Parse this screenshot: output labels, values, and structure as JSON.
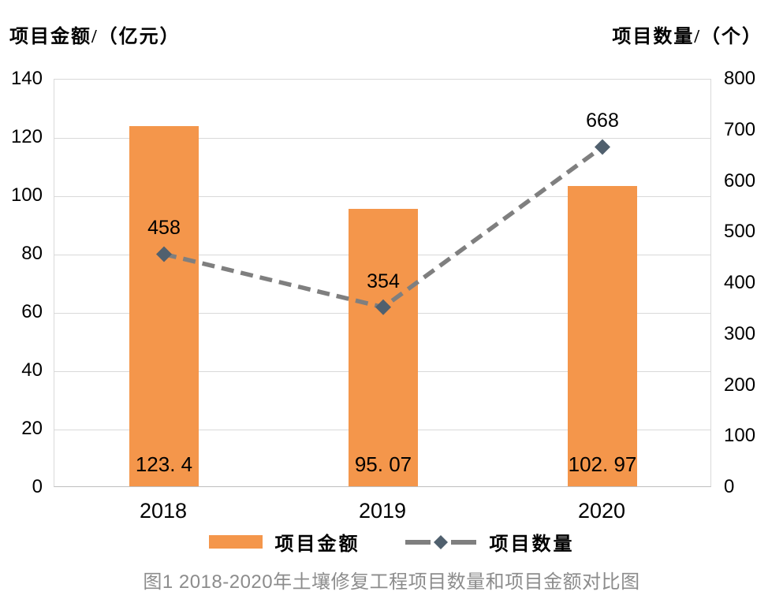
{
  "axes_titles": {
    "left": "项目金额/（亿元）",
    "right": "项目数量/（个）"
  },
  "legend": {
    "bar_label": "项目金额",
    "line_label": "项目数量"
  },
  "caption": "图1 2018-2020年土壤修复工程项目数量和项目金额对比图",
  "colors": {
    "bar": "#F4964B",
    "line_dash": "#7F7F7F",
    "marker": "#50606E",
    "gridline": "#D9D9D9",
    "axis_line": "#BFBFBF",
    "caption_text": "#8C8C8C",
    "label_text": "#000000"
  },
  "chart_data": {
    "type": "bar+line",
    "title": "图1 2018-2020年土壤修复工程项目数量和项目金额对比图",
    "categories": [
      "2018",
      "2019",
      "2020"
    ],
    "series": [
      {
        "name": "项目金额",
        "chart": "bar",
        "axis": "left",
        "values": [
          123.4,
          95.07,
          102.97
        ],
        "value_labels": [
          "123. 4",
          "95. 07",
          "102. 97"
        ],
        "color": "#F4964B"
      },
      {
        "name": "项目数量",
        "chart": "line",
        "axis": "right",
        "values": [
          458,
          354,
          668
        ],
        "value_labels": [
          "458",
          "354",
          "668"
        ],
        "line_style": "dashed",
        "marker": "diamond",
        "line_color": "#7F7F7F",
        "marker_color": "#50606E"
      }
    ],
    "left_axis": {
      "title": "项目金额/（亿元）",
      "min": 0,
      "max": 140,
      "step": 20,
      "tick_labels": [
        "140",
        "120",
        "100",
        "80",
        "60",
        "40",
        "20",
        "0"
      ]
    },
    "right_axis": {
      "title": "项目数量/（个）",
      "min": 0,
      "max": 800,
      "step": 100,
      "tick_labels": [
        "800",
        "700",
        "600",
        "500",
        "400",
        "300",
        "200",
        "100",
        "0"
      ]
    },
    "grid": "horizontal gridlines at left-axis steps",
    "legend_position": "bottom"
  }
}
